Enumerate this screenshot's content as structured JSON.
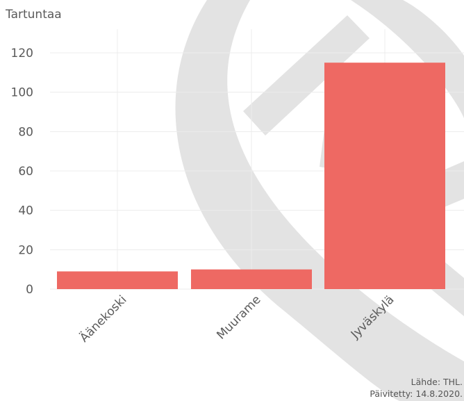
{
  "chart_data": {
    "type": "bar",
    "ylabel": "Tartuntaa",
    "xlabel": "",
    "categories": [
      "Äänekoski",
      "Muurame",
      "Jyväskylä"
    ],
    "values": [
      9,
      10,
      115
    ],
    "ylim": [
      0,
      125
    ],
    "yticks": [
      0,
      20,
      40,
      60,
      80,
      100,
      120
    ],
    "grid": true,
    "legend": "none",
    "bar_color": "#ee6660"
  },
  "footer": {
    "source": "Lähde: THL.",
    "updated": "Päivitetty: 14.8.2020."
  },
  "colors": {
    "bar": "#ee6660",
    "grid": "#ececec",
    "tick_text": "#5a5a5a",
    "watermark": "#bdbdbd"
  }
}
